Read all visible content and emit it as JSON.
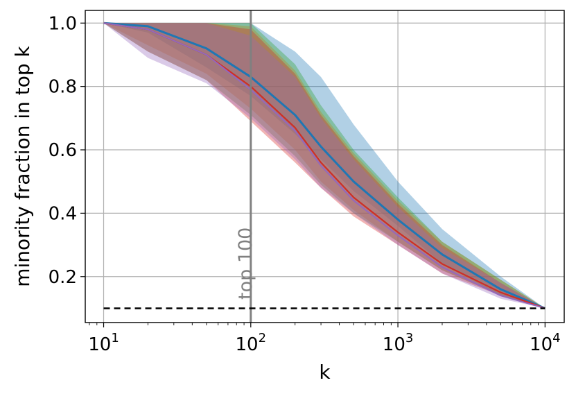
{
  "chart_data": {
    "type": "line",
    "title": "",
    "xlabel": "k",
    "ylabel": "minority fraction in top k",
    "xscale": "log",
    "xlim": [
      7.5,
      13500
    ],
    "ylim": [
      0.055,
      1.04
    ],
    "grid": true,
    "legend": "none",
    "x_ticks": [
      {
        "value": 10,
        "base": "10",
        "exp": "1"
      },
      {
        "value": 100,
        "base": "10",
        "exp": "2"
      },
      {
        "value": 1000,
        "base": "10",
        "exp": "3"
      },
      {
        "value": 10000,
        "base": "10",
        "exp": "4"
      }
    ],
    "y_ticks": [
      {
        "value": 0.2,
        "label": "0.2"
      },
      {
        "value": 0.4,
        "label": "0.4"
      },
      {
        "value": 0.6,
        "label": "0.6"
      },
      {
        "value": 0.8,
        "label": "0.8"
      },
      {
        "value": 1.0,
        "label": "1.0"
      }
    ],
    "vline": {
      "x": 100,
      "label": "top 100",
      "color": "#808080"
    },
    "hline": {
      "y": 0.1,
      "style": "dashed",
      "color": "#000000"
    },
    "x": [
      10,
      20,
      50,
      100,
      200,
      300,
      500,
      1000,
      2000,
      5000,
      10000
    ],
    "series": [
      {
        "color": "#1f77b4",
        "values": [
          1.0,
          0.99,
          0.92,
          0.83,
          0.71,
          0.61,
          0.5,
          0.38,
          0.27,
          0.16,
          0.1
        ],
        "lower": [
          1.0,
          0.97,
          0.86,
          0.77,
          0.65,
          0.57,
          0.47,
          0.36,
          0.24,
          0.14,
          0.1
        ],
        "upper": [
          1.0,
          1.0,
          1.0,
          1.0,
          0.91,
          0.83,
          0.68,
          0.5,
          0.35,
          0.2,
          0.1
        ]
      },
      {
        "color": "#ff7f0e",
        "values": [
          1.0,
          0.98,
          0.9,
          0.8,
          0.67,
          0.56,
          0.45,
          0.34,
          0.24,
          0.15,
          0.1
        ],
        "lower": [
          1.0,
          0.93,
          0.84,
          0.73,
          0.6,
          0.5,
          0.41,
          0.31,
          0.22,
          0.14,
          0.1
        ],
        "upper": [
          1.0,
          1.0,
          1.0,
          0.99,
          0.85,
          0.72,
          0.59,
          0.44,
          0.31,
          0.19,
          0.1
        ]
      },
      {
        "color": "#2ca02c",
        "values": [
          1.0,
          0.98,
          0.9,
          0.8,
          0.67,
          0.56,
          0.45,
          0.34,
          0.24,
          0.15,
          0.1
        ],
        "lower": [
          1.0,
          0.91,
          0.82,
          0.71,
          0.58,
          0.49,
          0.4,
          0.31,
          0.22,
          0.14,
          0.1
        ],
        "upper": [
          1.0,
          1.0,
          1.0,
          1.0,
          0.87,
          0.74,
          0.6,
          0.45,
          0.31,
          0.19,
          0.1
        ]
      },
      {
        "color": "#d62728",
        "values": [
          1.0,
          0.98,
          0.9,
          0.8,
          0.67,
          0.56,
          0.45,
          0.34,
          0.24,
          0.15,
          0.1
        ],
        "lower": [
          1.0,
          0.91,
          0.82,
          0.69,
          0.56,
          0.48,
          0.39,
          0.3,
          0.21,
          0.14,
          0.1
        ],
        "upper": [
          1.0,
          1.0,
          1.0,
          0.98,
          0.84,
          0.71,
          0.58,
          0.43,
          0.3,
          0.18,
          0.1
        ]
      },
      {
        "color": "#9467bd",
        "values": [
          1.0,
          0.98,
          0.9,
          0.79,
          0.66,
          0.55,
          0.44,
          0.33,
          0.23,
          0.14,
          0.1
        ],
        "lower": [
          1.0,
          0.89,
          0.81,
          0.7,
          0.57,
          0.48,
          0.4,
          0.3,
          0.21,
          0.13,
          0.1
        ],
        "upper": [
          1.0,
          1.0,
          1.0,
          0.96,
          0.83,
          0.7,
          0.57,
          0.42,
          0.29,
          0.18,
          0.1
        ]
      }
    ]
  }
}
